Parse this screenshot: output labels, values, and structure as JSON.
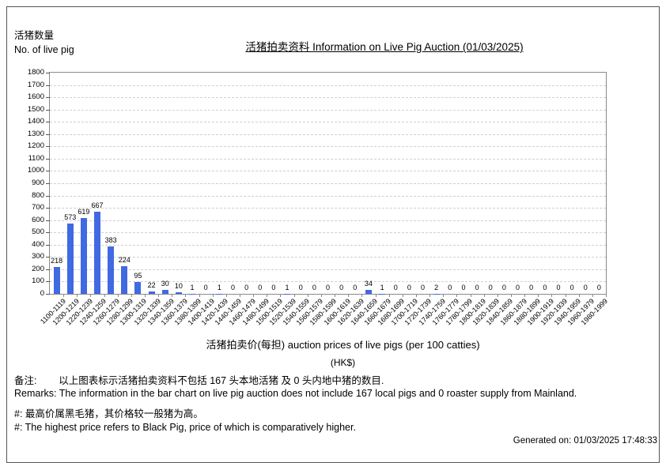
{
  "header": {
    "y_axis_title_zh": "活猪数量",
    "y_axis_title_en": "No. of live pig"
  },
  "chart_data": {
    "type": "bar",
    "title": "活猪拍卖资料 Information on Live Pig Auction (01/03/2025)",
    "xlabel": "活猪拍卖价(每担) auction prices of live pigs (per 100 catties)",
    "xlabel2": "(HK$)",
    "ylabel": "活猪数量 No. of live pig",
    "ylim": [
      0,
      1800
    ],
    "ytick_step": 100,
    "grid": true,
    "legend": "none",
    "bar_color": "#4169E1",
    "categories": [
      "1100-1119",
      "1200-1219",
      "1220-1239",
      "1240-1259",
      "1260-1279",
      "1280-1299",
      "1300-1319",
      "1320-1339",
      "1340-1359",
      "1360-1379",
      "1380-1399",
      "1400-1419",
      "1420-1439",
      "1440-1459",
      "1460-1479",
      "1480-1499",
      "1500-1519",
      "1520-1539",
      "1540-1559",
      "1560-1579",
      "1580-1599",
      "1600-1619",
      "1620-1639",
      "1640-1659",
      "1660-1679",
      "1680-1699",
      "1700-1719",
      "1720-1739",
      "1740-1759",
      "1760-1779",
      "1780-1799",
      "1800-1819",
      "1820-1839",
      "1840-1859",
      "1860-1879",
      "1880-1899",
      "1900-1919",
      "1920-1939",
      "1940-1959",
      "1960-1979",
      "1980-1999"
    ],
    "values": [
      218,
      573,
      619,
      667,
      383,
      224,
      95,
      22,
      30,
      10,
      1,
      0,
      1,
      0,
      0,
      0,
      0,
      1,
      0,
      0,
      0,
      0,
      0,
      34,
      1,
      0,
      0,
      0,
      2,
      0,
      0,
      0,
      0,
      0,
      0,
      0,
      0,
      0,
      0,
      0,
      0
    ]
  },
  "remarks": {
    "note_zh": "备注:        以上图表标示活猪拍卖资料不包括 167 头本地活猪 及 0 头内地中猪的数目.",
    "note_en": "Remarks: The information in the bar chart on live pig auction does not include 167 local pigs and 0 roaster supply from Mainland.",
    "black_pig_zh": "#: 最高价属黑毛猪，其价格较一般猪为高。",
    "black_pig_en": "#: The highest price refers to Black Pig, price of which is comparatively higher."
  },
  "footer": {
    "generated_on": "Generated on: 01/03/2025 17:48:33"
  }
}
